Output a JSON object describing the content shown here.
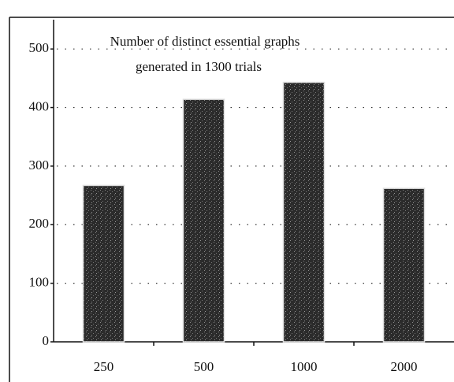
{
  "chart_data": {
    "type": "bar",
    "title": [
      "Number of distinct essential graphs",
      "generated in 1300 trials"
    ],
    "categories": [
      "250",
      "500",
      "1000",
      "2000"
    ],
    "values": [
      267,
      414,
      443,
      262
    ],
    "color": "#2b2b2b",
    "ylim": [
      0,
      550
    ],
    "yticks": [
      0,
      100,
      200,
      300,
      400,
      500
    ],
    "grid": true
  }
}
